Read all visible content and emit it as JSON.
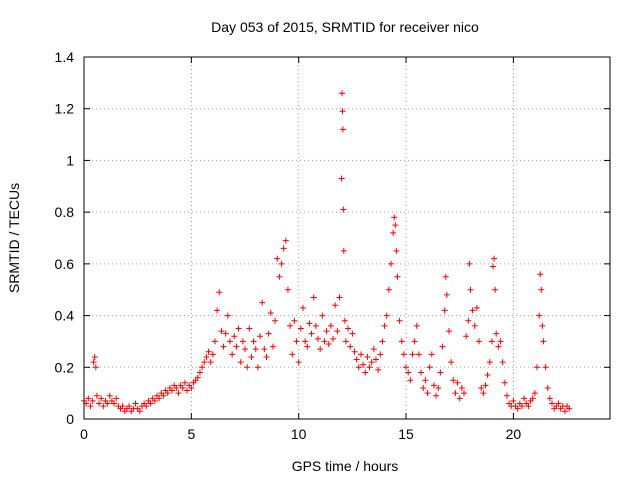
{
  "chart_data": {
    "type": "scatter",
    "title": "Day 053 of 2015, SRMTID for receiver nico",
    "xlabel": "GPS time / hours",
    "ylabel": "SRMTID / TECUs",
    "xlim": [
      0,
      24.5
    ],
    "ylim": [
      0,
      1.4
    ],
    "xticks": [
      0,
      5,
      10,
      15,
      20
    ],
    "xtick_labels": [
      "0",
      "5",
      "10",
      "15",
      "20"
    ],
    "yticks": [
      0,
      0.2,
      0.4,
      0.6,
      0.8,
      1,
      1.2,
      1.4
    ],
    "ytick_labels": [
      "0",
      "0.2",
      "0.4",
      "0.6",
      "0.8",
      "1",
      "1.2",
      "1.4"
    ],
    "grid": true,
    "marker": "+",
    "series": [
      {
        "name": "SRMTID",
        "color": "#ff0000",
        "points": [
          [
            0.0,
            0.07
          ],
          [
            0.1,
            0.06
          ],
          [
            0.2,
            0.08
          ],
          [
            0.3,
            0.05
          ],
          [
            0.4,
            0.07
          ],
          [
            0.45,
            0.22
          ],
          [
            0.5,
            0.24
          ],
          [
            0.55,
            0.2
          ],
          [
            0.6,
            0.09
          ],
          [
            0.7,
            0.06
          ],
          [
            0.8,
            0.08
          ],
          [
            0.9,
            0.05
          ],
          [
            1.0,
            0.07
          ],
          [
            1.1,
            0.06
          ],
          [
            1.2,
            0.09
          ],
          [
            1.3,
            0.07
          ],
          [
            1.4,
            0.06
          ],
          [
            1.5,
            0.08
          ],
          [
            1.6,
            0.05
          ],
          [
            1.7,
            0.04
          ],
          [
            1.8,
            0.05
          ],
          [
            1.9,
            0.03
          ],
          [
            2.0,
            0.04
          ],
          [
            2.1,
            0.05
          ],
          [
            2.2,
            0.03
          ],
          [
            2.3,
            0.04
          ],
          [
            2.4,
            0.06
          ],
          [
            2.5,
            0.04
          ],
          [
            2.6,
            0.03
          ],
          [
            2.7,
            0.05
          ],
          [
            2.8,
            0.06
          ],
          [
            2.9,
            0.05
          ],
          [
            3.0,
            0.07
          ],
          [
            3.1,
            0.06
          ],
          [
            3.2,
            0.08
          ],
          [
            3.3,
            0.07
          ],
          [
            3.4,
            0.09
          ],
          [
            3.5,
            0.08
          ],
          [
            3.6,
            0.1
          ],
          [
            3.7,
            0.09
          ],
          [
            3.8,
            0.11
          ],
          [
            3.9,
            0.1
          ],
          [
            4.0,
            0.12
          ],
          [
            4.1,
            0.11
          ],
          [
            4.2,
            0.13
          ],
          [
            4.3,
            0.12
          ],
          [
            4.4,
            0.1
          ],
          [
            4.5,
            0.13
          ],
          [
            4.6,
            0.12
          ],
          [
            4.7,
            0.14
          ],
          [
            4.8,
            0.11
          ],
          [
            4.9,
            0.13
          ],
          [
            5.0,
            0.12
          ],
          [
            5.1,
            0.14
          ],
          [
            5.2,
            0.15
          ],
          [
            5.3,
            0.16
          ],
          [
            5.4,
            0.18
          ],
          [
            5.5,
            0.2
          ],
          [
            5.6,
            0.22
          ],
          [
            5.7,
            0.24
          ],
          [
            5.8,
            0.26
          ],
          [
            5.9,
            0.22
          ],
          [
            6.0,
            0.25
          ],
          [
            6.1,
            0.3
          ],
          [
            6.2,
            0.42
          ],
          [
            6.3,
            0.49
          ],
          [
            6.4,
            0.34
          ],
          [
            6.5,
            0.28
          ],
          [
            6.6,
            0.33
          ],
          [
            6.7,
            0.4
          ],
          [
            6.8,
            0.3
          ],
          [
            6.9,
            0.25
          ],
          [
            7.0,
            0.32
          ],
          [
            7.1,
            0.28
          ],
          [
            7.2,
            0.35
          ],
          [
            7.3,
            0.22
          ],
          [
            7.4,
            0.3
          ],
          [
            7.5,
            0.27
          ],
          [
            7.6,
            0.2
          ],
          [
            7.7,
            0.35
          ],
          [
            7.8,
            0.24
          ],
          [
            7.9,
            0.3
          ],
          [
            8.0,
            0.27
          ],
          [
            8.1,
            0.2
          ],
          [
            8.2,
            0.32
          ],
          [
            8.3,
            0.45
          ],
          [
            8.4,
            0.27
          ],
          [
            8.5,
            0.24
          ],
          [
            8.6,
            0.33
          ],
          [
            8.7,
            0.41
          ],
          [
            8.8,
            0.28
          ],
          [
            8.9,
            0.38
          ],
          [
            9.0,
            0.62
          ],
          [
            9.1,
            0.55
          ],
          [
            9.2,
            0.6
          ],
          [
            9.3,
            0.66
          ],
          [
            9.4,
            0.69
          ],
          [
            9.5,
            0.5
          ],
          [
            9.6,
            0.36
          ],
          [
            9.7,
            0.25
          ],
          [
            9.8,
            0.38
          ],
          [
            9.9,
            0.3
          ],
          [
            10.0,
            0.22
          ],
          [
            10.1,
            0.35
          ],
          [
            10.2,
            0.43
          ],
          [
            10.3,
            0.3
          ],
          [
            10.4,
            0.28
          ],
          [
            10.5,
            0.37
          ],
          [
            10.6,
            0.33
          ],
          [
            10.7,
            0.47
          ],
          [
            10.8,
            0.36
          ],
          [
            10.9,
            0.31
          ],
          [
            11.0,
            0.27
          ],
          [
            11.1,
            0.4
          ],
          [
            11.2,
            0.3
          ],
          [
            11.3,
            0.34
          ],
          [
            11.4,
            0.29
          ],
          [
            11.5,
            0.36
          ],
          [
            11.6,
            0.31
          ],
          [
            11.7,
            0.44
          ],
          [
            11.8,
            0.34
          ],
          [
            11.9,
            0.47
          ],
          [
            12.0,
            0.93
          ],
          [
            12.02,
            1.26
          ],
          [
            12.04,
            1.19
          ],
          [
            12.06,
            1.12
          ],
          [
            12.08,
            0.81
          ],
          [
            12.1,
            0.65
          ],
          [
            12.15,
            0.38
          ],
          [
            12.2,
            0.3
          ],
          [
            12.3,
            0.35
          ],
          [
            12.4,
            0.28
          ],
          [
            12.5,
            0.33
          ],
          [
            12.6,
            0.26
          ],
          [
            12.7,
            0.23
          ],
          [
            12.8,
            0.2
          ],
          [
            12.9,
            0.25
          ],
          [
            13.0,
            0.21
          ],
          [
            13.1,
            0.18
          ],
          [
            13.2,
            0.24
          ],
          [
            13.3,
            0.2
          ],
          [
            13.4,
            0.22
          ],
          [
            13.5,
            0.27
          ],
          [
            13.6,
            0.23
          ],
          [
            13.7,
            0.19
          ],
          [
            13.8,
            0.25
          ],
          [
            13.9,
            0.3
          ],
          [
            14.0,
            0.36
          ],
          [
            14.1,
            0.4
          ],
          [
            14.2,
            0.5
          ],
          [
            14.3,
            0.6
          ],
          [
            14.4,
            0.72
          ],
          [
            14.45,
            0.78
          ],
          [
            14.5,
            0.75
          ],
          [
            14.55,
            0.65
          ],
          [
            14.6,
            0.55
          ],
          [
            14.7,
            0.38
          ],
          [
            14.8,
            0.3
          ],
          [
            14.9,
            0.25
          ],
          [
            15.0,
            0.2
          ],
          [
            15.1,
            0.18
          ],
          [
            15.2,
            0.15
          ],
          [
            15.3,
            0.25
          ],
          [
            15.4,
            0.3
          ],
          [
            15.5,
            0.36
          ],
          [
            15.6,
            0.25
          ],
          [
            15.7,
            0.18
          ],
          [
            15.8,
            0.12
          ],
          [
            15.9,
            0.15
          ],
          [
            16.0,
            0.1
          ],
          [
            16.1,
            0.2
          ],
          [
            16.2,
            0.25
          ],
          [
            16.3,
            0.13
          ],
          [
            16.4,
            0.09
          ],
          [
            16.5,
            0.12
          ],
          [
            16.6,
            0.18
          ],
          [
            16.7,
            0.28
          ],
          [
            16.8,
            0.42
          ],
          [
            16.85,
            0.55
          ],
          [
            16.9,
            0.48
          ],
          [
            17.0,
            0.34
          ],
          [
            17.1,
            0.22
          ],
          [
            17.2,
            0.15
          ],
          [
            17.3,
            0.1
          ],
          [
            17.4,
            0.14
          ],
          [
            17.5,
            0.08
          ],
          [
            17.6,
            0.12
          ],
          [
            17.7,
            0.1
          ],
          [
            17.8,
            0.32
          ],
          [
            17.9,
            0.38
          ],
          [
            17.95,
            0.6
          ],
          [
            18.0,
            0.5
          ],
          [
            18.1,
            0.42
          ],
          [
            18.2,
            0.36
          ],
          [
            18.3,
            0.43
          ],
          [
            18.4,
            0.3
          ],
          [
            18.5,
            0.12
          ],
          [
            18.6,
            0.1
          ],
          [
            18.7,
            0.13
          ],
          [
            18.8,
            0.17
          ],
          [
            18.9,
            0.22
          ],
          [
            19.0,
            0.3
          ],
          [
            19.05,
            0.59
          ],
          [
            19.1,
            0.62
          ],
          [
            19.15,
            0.5
          ],
          [
            19.2,
            0.33
          ],
          [
            19.3,
            0.28
          ],
          [
            19.4,
            0.3
          ],
          [
            19.5,
            0.22
          ],
          [
            19.6,
            0.14
          ],
          [
            19.7,
            0.09
          ],
          [
            19.8,
            0.06
          ],
          [
            19.9,
            0.05
          ],
          [
            20.0,
            0.07
          ],
          [
            20.1,
            0.05
          ],
          [
            20.2,
            0.04
          ],
          [
            20.3,
            0.06
          ],
          [
            20.4,
            0.05
          ],
          [
            20.5,
            0.08
          ],
          [
            20.6,
            0.06
          ],
          [
            20.7,
            0.05
          ],
          [
            20.8,
            0.07
          ],
          [
            20.9,
            0.08
          ],
          [
            21.0,
            0.1
          ],
          [
            21.1,
            0.2
          ],
          [
            21.2,
            0.4
          ],
          [
            21.25,
            0.56
          ],
          [
            21.3,
            0.5
          ],
          [
            21.35,
            0.36
          ],
          [
            21.4,
            0.3
          ],
          [
            21.5,
            0.2
          ],
          [
            21.6,
            0.12
          ],
          [
            21.7,
            0.08
          ],
          [
            21.8,
            0.06
          ],
          [
            21.9,
            0.04
          ],
          [
            22.0,
            0.05
          ],
          [
            22.1,
            0.06
          ],
          [
            22.2,
            0.04
          ],
          [
            22.3,
            0.05
          ],
          [
            22.4,
            0.03
          ],
          [
            22.5,
            0.05
          ],
          [
            22.6,
            0.04
          ]
        ]
      }
    ]
  }
}
